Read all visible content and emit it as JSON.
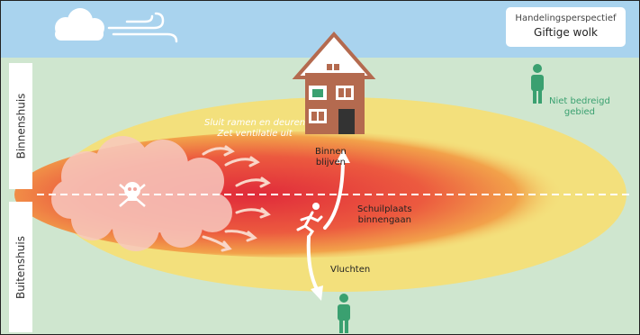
{
  "title": {
    "line1": "Handelingsperspectief",
    "line2": "Giftige wolk"
  },
  "zones": {
    "inside": "Binnenshuis",
    "outside": "Buitenshuis"
  },
  "instructions": {
    "close_line1": "Sluit ramen en deuren",
    "close_line2": "Zet ventilatie uit"
  },
  "actions": {
    "stay_line1": "Binnen",
    "stay_line2": "blijven",
    "shelter_line1": "Schuilplaats",
    "shelter_line2": "binnengaan",
    "flee": "Vluchten"
  },
  "safe": {
    "line1": "Niet bedreigd",
    "line2": "gebied"
  },
  "icons": [
    "cloud-icon",
    "wind-icon",
    "house-icon",
    "skull-icon",
    "running-person-icon",
    "person-icon"
  ],
  "colors": {
    "sky": "#a9d3ee",
    "ground": "#cfe6cf",
    "zone_outer": "#f3e07c",
    "zone_core": "#e8383d",
    "person": "#3aa070",
    "house": "#b46a4f"
  }
}
